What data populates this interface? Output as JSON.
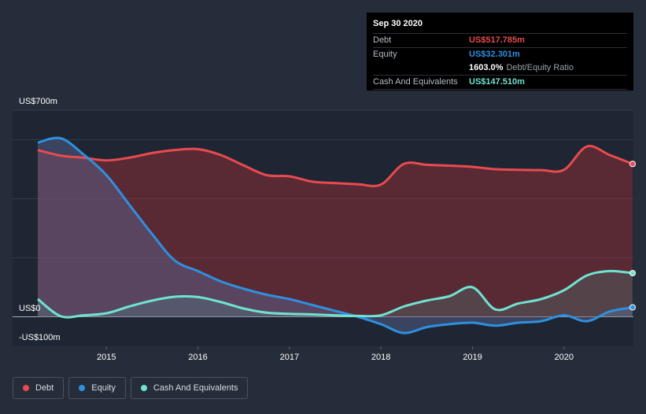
{
  "chart_data": {
    "type": "area",
    "x_range": [
      2014.25,
      2020.75
    ],
    "ylim": [
      -100,
      700
    ],
    "y_labels": {
      "top": "US$700m",
      "zero": "US$0",
      "bottom": "-US$100m"
    },
    "x_ticks": [
      "2015",
      "2016",
      "2017",
      "2018",
      "2019",
      "2020"
    ],
    "x_tick_values": [
      2015,
      2016,
      2017,
      2018,
      2019,
      2020
    ],
    "series": [
      {
        "name": "Debt",
        "color": "#e84b4f",
        "x": [
          2014.25,
          2014.5,
          2014.75,
          2015.0,
          2015.25,
          2015.5,
          2015.75,
          2016.0,
          2016.25,
          2016.5,
          2016.75,
          2017.0,
          2017.25,
          2017.5,
          2017.75,
          2018.0,
          2018.25,
          2018.5,
          2018.75,
          2019.0,
          2019.25,
          2019.5,
          2019.75,
          2020.0,
          2020.25,
          2020.5,
          2020.75
        ],
        "values": [
          565,
          546,
          539,
          530,
          539,
          555,
          565,
          568,
          548,
          513,
          480,
          476,
          458,
          453,
          449,
          448,
          518,
          515,
          512,
          508,
          500,
          498,
          497,
          498,
          577,
          548,
          518
        ]
      },
      {
        "name": "Equity",
        "color": "#2e90e0",
        "x": [
          2014.25,
          2014.5,
          2014.75,
          2015.0,
          2015.25,
          2015.5,
          2015.75,
          2016.0,
          2016.25,
          2016.5,
          2016.75,
          2017.0,
          2017.25,
          2017.5,
          2017.75,
          2018.0,
          2018.25,
          2018.5,
          2018.75,
          2019.0,
          2019.25,
          2019.5,
          2019.75,
          2020.0,
          2020.25,
          2020.5,
          2020.75
        ],
        "values": [
          590,
          605,
          550,
          480,
          380,
          280,
          190,
          155,
          120,
          95,
          75,
          60,
          40,
          20,
          0,
          -25,
          -55,
          -35,
          -25,
          -20,
          -30,
          -20,
          -15,
          5,
          -15,
          18,
          32
        ]
      },
      {
        "name": "Cash And Equivalents",
        "color": "#6fe3d0",
        "x": [
          2014.25,
          2014.5,
          2014.75,
          2015.0,
          2015.25,
          2015.5,
          2015.75,
          2016.0,
          2016.25,
          2016.5,
          2016.75,
          2017.0,
          2017.25,
          2017.5,
          2017.75,
          2018.0,
          2018.25,
          2018.5,
          2018.75,
          2019.0,
          2019.25,
          2019.5,
          2019.75,
          2020.0,
          2020.25,
          2020.5,
          2020.75
        ],
        "values": [
          60,
          2,
          5,
          12,
          35,
          55,
          68,
          67,
          50,
          28,
          14,
          10,
          8,
          5,
          3,
          5,
          35,
          55,
          70,
          100,
          25,
          45,
          60,
          90,
          140,
          155,
          148
        ]
      }
    ],
    "legend_position": "bottom-left"
  },
  "tooltip": {
    "date": "Sep 30 2020",
    "debt_label": "Debt",
    "debt_value": "US$517.785m",
    "equity_label": "Equity",
    "equity_value": "US$32.301m",
    "ratio_value": "1603.0%",
    "ratio_label": "Debt/Equity Ratio",
    "cash_label": "Cash And Equivalents",
    "cash_value": "US$147.510m"
  },
  "legend": {
    "items": [
      {
        "label": "Debt",
        "color": "#e84b4f"
      },
      {
        "label": "Equity",
        "color": "#2e90e0"
      },
      {
        "label": "Cash And Equivalents",
        "color": "#6fe3d0"
      }
    ]
  }
}
